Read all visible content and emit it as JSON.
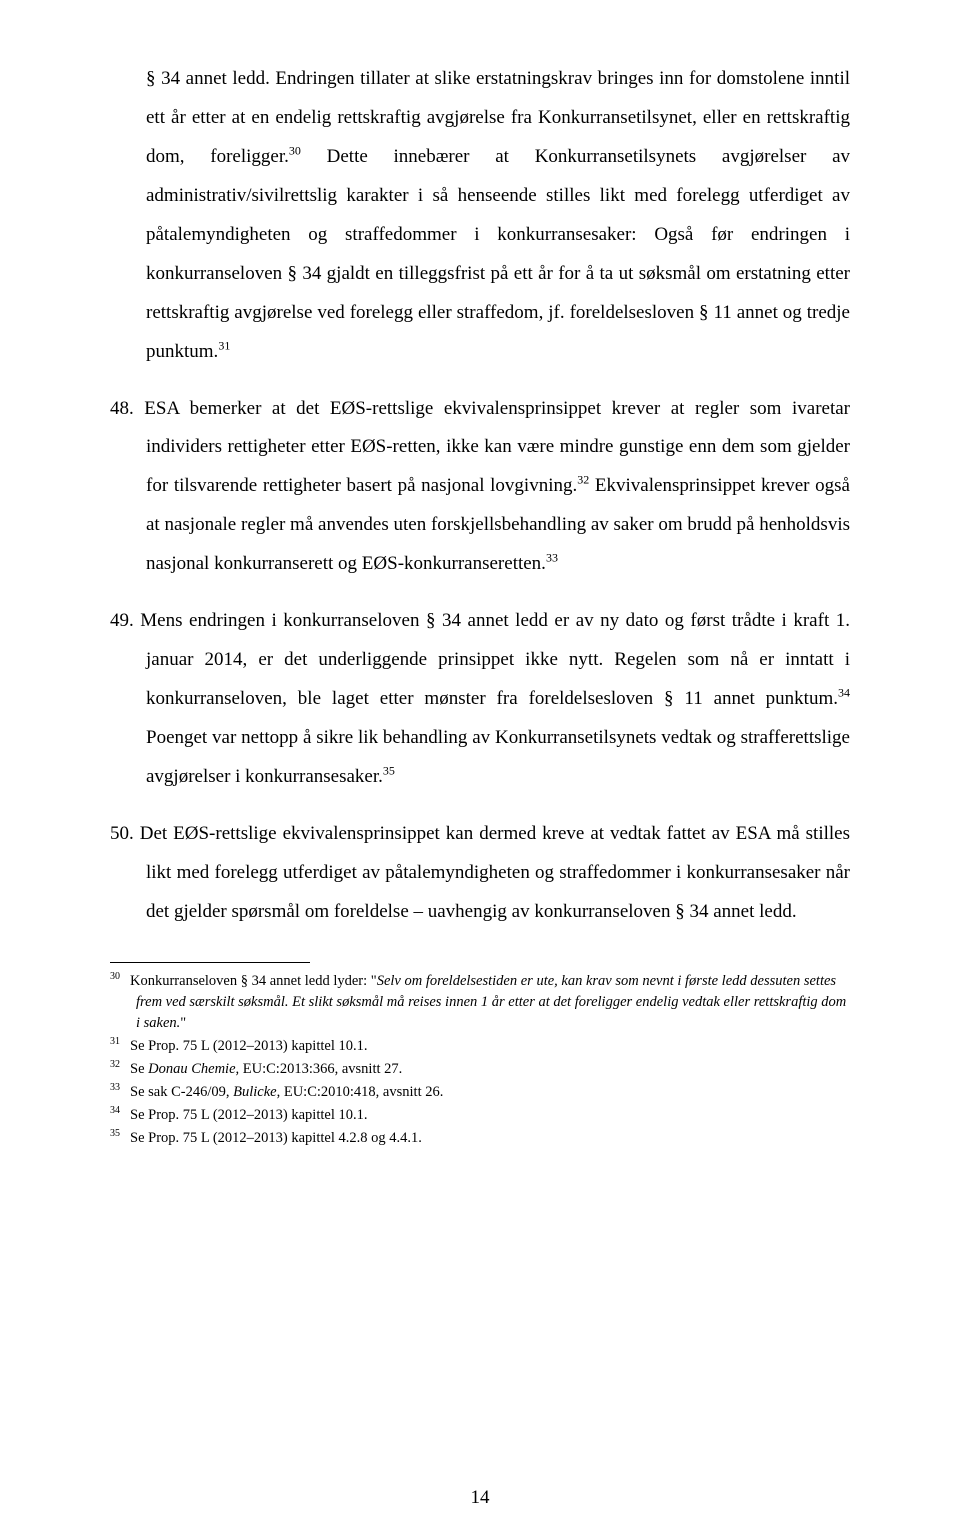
{
  "paragraphs": {
    "p0_a": "§ 34 annet ledd. Endringen tillater at slike erstatningskrav bringes inn for domstolene inntil ett år etter at en endelig rettskraftig avgjørelse fra Konkurransetilsynet, eller en rettskraftig dom, foreligger.",
    "p0_sup1": "30",
    "p0_b": " Dette innebærer at Konkurransetilsynets avgjørelser av administrativ/sivilrettslig karakter i så henseende stilles likt med forelegg utferdiget av påtalemyndigheten og straffedommer i konkurransesaker: Også før endringen i konkurranseloven § 34 gjaldt en tilleggsfrist på ett år for å ta ut søksmål om erstatning etter rettskraftig avgjørelse ved forelegg eller straffedom, jf. foreldelsesloven § 11 annet og tredje punktum.",
    "p0_sup2": "31",
    "p48_a": "48. ESA bemerker at det EØS-rettslige ekvivalensprinsippet krever at regler som ivaretar individers rettigheter etter EØS-retten, ikke kan være mindre gunstige enn dem som gjelder for tilsvarende rettigheter basert på nasjonal lovgivning.",
    "p48_sup1": "32",
    "p48_b": " Ekvivalensprinsippet krever også at nasjonale regler må anvendes uten forskjellsbehandling av saker om brudd på henholdsvis nasjonal konkurranserett og EØS-konkurranseretten.",
    "p48_sup2": "33",
    "p49_a": "49. Mens endringen i konkurranseloven § 34 annet ledd er av ny dato og først trådte i kraft 1. januar 2014, er det underliggende prinsippet ikke nytt. Regelen som nå er inntatt i konkurranseloven, ble laget etter mønster fra foreldelsesloven § 11 annet punktum.",
    "p49_sup1": "34",
    "p49_b": " Poenget var nettopp å sikre lik behandling av Konkurransetilsynets vedtak og strafferettslige avgjørelser i konkurransesaker.",
    "p49_sup2": "35",
    "p50": "50. Det EØS-rettslige ekvivalensprinsippet kan dermed kreve at vedtak fattet av ESA må stilles likt med forelegg utferdiget av påtalemyndigheten og straffedommer i konkurransesaker når det gjelder spørsmål om foreldelse – uavhengig av konkurranseloven § 34 annet ledd."
  },
  "footnotes": {
    "f30_num": "30",
    "f30_a": "Konkurranseloven § 34 annet ledd lyder: \"",
    "f30_italic": "Selv om foreldelsestiden er ute, kan krav som nevnt i første ledd dessuten settes frem ved særskilt søksmål. Et slikt søksmål må reises innen 1 år etter at det foreligger endelig vedtak eller rettskraftig dom i saken.",
    "f30_b": "\"",
    "f31_num": "31",
    "f31": "Se Prop. 75 L (2012–2013) kapittel 10.1.",
    "f32_num": "32",
    "f32_a": "Se ",
    "f32_italic": "Donau Chemie,",
    "f32_b": " EU:C:2013:366, avsnitt 27.",
    "f33_num": "33",
    "f33_a": "Se sak C-246/09, ",
    "f33_italic": "Bulicke",
    "f33_b": ", EU:C:2010:418, avsnitt 26.",
    "f34_num": "34",
    "f34": "Se Prop. 75 L (2012–2013) kapittel 10.1.",
    "f35_num": "35",
    "f35": "Se Prop. 75 L (2012–2013) kapittel 4.2.8 og 4.4.1."
  },
  "pageNumber": "14"
}
